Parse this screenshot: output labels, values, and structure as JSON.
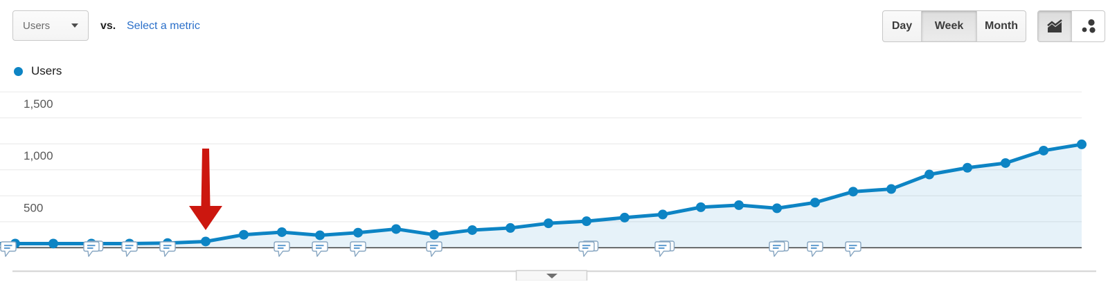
{
  "toolbar": {
    "metric_selector": {
      "label": "Users"
    },
    "vs_label": "vs.",
    "select_metric_label": "Select a metric",
    "granularity": {
      "options": [
        "Day",
        "Week",
        "Month"
      ],
      "selected": "Week"
    },
    "chart_type": {
      "buttons": [
        "line-chart",
        "motion-chart"
      ],
      "selected": "line-chart"
    }
  },
  "legend": {
    "label": "Users",
    "color": "#0d84c4"
  },
  "chart_data": {
    "type": "area",
    "x": {
      "granularity": "Week",
      "points": 29,
      "tick_labels_visible": false
    },
    "series": [
      {
        "name": "Users",
        "color": "#0d84c4",
        "values": [
          40,
          40,
          40,
          40,
          45,
          60,
          125,
          150,
          120,
          145,
          180,
          125,
          170,
          190,
          235,
          255,
          290,
          320,
          390,
          410,
          380,
          435,
          540,
          565,
          705,
          770,
          815,
          935,
          995
        ]
      }
    ],
    "y_axis": {
      "range": [
        0,
        1750
      ],
      "gridline_step": 250,
      "ticks": [
        {
          "value": 500,
          "label": "500"
        },
        {
          "value": 1000,
          "label": "1,000"
        },
        {
          "value": 1500,
          "label": "1,500"
        }
      ]
    },
    "annotations": {
      "markers": [
        {
          "point_index": 0,
          "stacked": false,
          "offset_x": -10
        },
        {
          "point_index": 2,
          "stacked": true,
          "offset_x": 0
        },
        {
          "point_index": 3,
          "stacked": false,
          "offset_x": 0
        },
        {
          "point_index": 4,
          "stacked": false,
          "offset_x": 0
        },
        {
          "point_index": 7,
          "stacked": false,
          "offset_x": 0
        },
        {
          "point_index": 8,
          "stacked": false,
          "offset_x": 0
        },
        {
          "point_index": 9,
          "stacked": false,
          "offset_x": 0
        },
        {
          "point_index": 11,
          "stacked": false,
          "offset_x": 0
        },
        {
          "point_index": 15,
          "stacked": true,
          "offset_x": 0
        },
        {
          "point_index": 17,
          "stacked": true,
          "offset_x": 0
        },
        {
          "point_index": 20,
          "stacked": true,
          "offset_x": 0
        },
        {
          "point_index": 21,
          "stacked": false,
          "offset_x": 0
        },
        {
          "point_index": 22,
          "stacked": false,
          "offset_x": 0
        }
      ],
      "bubble_border_color": "#86a5c1",
      "bubble_dash_color": "#4a8fc9"
    },
    "arrow": {
      "point_index": 5,
      "direction": "down",
      "color": "#cc170f"
    },
    "colors": {
      "gridline": "#e8e8e8",
      "baseline": "#3b3b3b",
      "area_fill_opacity": 0.1,
      "footer_separator": "#d2d2d2"
    }
  }
}
